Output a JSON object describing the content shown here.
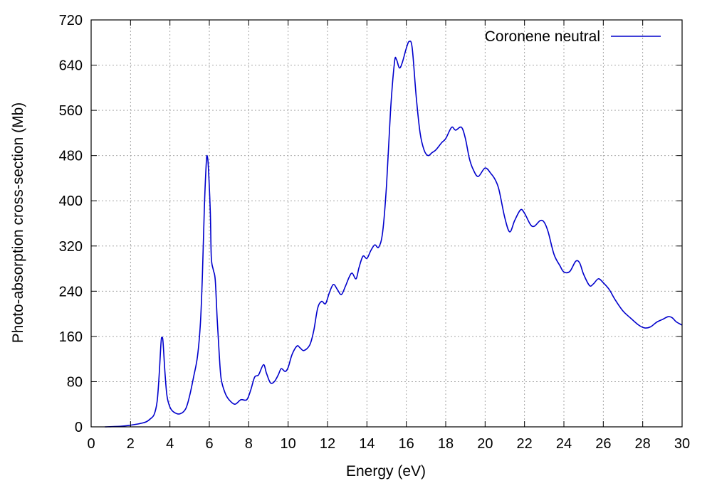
{
  "chart_data": {
    "type": "line",
    "xlabel": "Energy (eV)",
    "ylabel": "Photo-absorption cross-section (Mb)",
    "xlim": [
      0,
      30
    ],
    "ylim": [
      0,
      720
    ],
    "x_ticks": [
      0,
      2,
      4,
      6,
      8,
      10,
      12,
      14,
      16,
      18,
      20,
      22,
      24,
      26,
      28,
      30
    ],
    "y_ticks": [
      0,
      80,
      160,
      240,
      320,
      400,
      480,
      560,
      640,
      720
    ],
    "grid": true,
    "legend_position": "top-right",
    "series": [
      {
        "name": "Coronene neutral",
        "color": "#0000cc",
        "points": [
          [
            0.7,
            0
          ],
          [
            1.5,
            1
          ],
          [
            2.0,
            3
          ],
          [
            2.5,
            6
          ],
          [
            2.8,
            9
          ],
          [
            3.0,
            14
          ],
          [
            3.2,
            22
          ],
          [
            3.35,
            45
          ],
          [
            3.45,
            90
          ],
          [
            3.55,
            150
          ],
          [
            3.6,
            158
          ],
          [
            3.65,
            150
          ],
          [
            3.75,
            95
          ],
          [
            3.85,
            55
          ],
          [
            4.0,
            35
          ],
          [
            4.2,
            26
          ],
          [
            4.5,
            23
          ],
          [
            4.8,
            32
          ],
          [
            5.0,
            55
          ],
          [
            5.2,
            88
          ],
          [
            5.4,
            125
          ],
          [
            5.55,
            185
          ],
          [
            5.65,
            270
          ],
          [
            5.75,
            390
          ],
          [
            5.85,
            470
          ],
          [
            5.9,
            478
          ],
          [
            5.95,
            460
          ],
          [
            6.05,
            380
          ],
          [
            6.1,
            300
          ],
          [
            6.2,
            278
          ],
          [
            6.3,
            260
          ],
          [
            6.4,
            190
          ],
          [
            6.5,
            130
          ],
          [
            6.6,
            85
          ],
          [
            6.8,
            60
          ],
          [
            7.0,
            48
          ],
          [
            7.3,
            40
          ],
          [
            7.6,
            48
          ],
          [
            7.9,
            48
          ],
          [
            8.1,
            65
          ],
          [
            8.3,
            88
          ],
          [
            8.5,
            92
          ],
          [
            8.75,
            110
          ],
          [
            8.9,
            95
          ],
          [
            9.1,
            78
          ],
          [
            9.3,
            80
          ],
          [
            9.5,
            92
          ],
          [
            9.65,
            103
          ],
          [
            9.85,
            98
          ],
          [
            10.0,
            105
          ],
          [
            10.2,
            128
          ],
          [
            10.45,
            143
          ],
          [
            10.6,
            140
          ],
          [
            10.8,
            135
          ],
          [
            11.1,
            145
          ],
          [
            11.3,
            170
          ],
          [
            11.5,
            210
          ],
          [
            11.7,
            222
          ],
          [
            11.9,
            218
          ],
          [
            12.1,
            238
          ],
          [
            12.3,
            252
          ],
          [
            12.5,
            243
          ],
          [
            12.7,
            234
          ],
          [
            12.9,
            248
          ],
          [
            13.1,
            265
          ],
          [
            13.25,
            272
          ],
          [
            13.45,
            262
          ],
          [
            13.6,
            282
          ],
          [
            13.8,
            302
          ],
          [
            14.0,
            298
          ],
          [
            14.2,
            312
          ],
          [
            14.4,
            322
          ],
          [
            14.6,
            318
          ],
          [
            14.8,
            345
          ],
          [
            15.0,
            430
          ],
          [
            15.2,
            560
          ],
          [
            15.4,
            645
          ],
          [
            15.5,
            650
          ],
          [
            15.65,
            635
          ],
          [
            15.8,
            645
          ],
          [
            16.0,
            670
          ],
          [
            16.15,
            682
          ],
          [
            16.3,
            670
          ],
          [
            16.5,
            585
          ],
          [
            16.7,
            520
          ],
          [
            16.9,
            490
          ],
          [
            17.1,
            480
          ],
          [
            17.3,
            485
          ],
          [
            17.5,
            490
          ],
          [
            17.8,
            503
          ],
          [
            18.0,
            510
          ],
          [
            18.3,
            530
          ],
          [
            18.5,
            525
          ],
          [
            18.8,
            530
          ],
          [
            19.0,
            510
          ],
          [
            19.2,
            475
          ],
          [
            19.4,
            455
          ],
          [
            19.65,
            443
          ],
          [
            20.0,
            458
          ],
          [
            20.3,
            448
          ],
          [
            20.5,
            438
          ],
          [
            20.7,
            420
          ],
          [
            21.0,
            370
          ],
          [
            21.25,
            345
          ],
          [
            21.5,
            365
          ],
          [
            21.8,
            384
          ],
          [
            22.0,
            378
          ],
          [
            22.3,
            358
          ],
          [
            22.5,
            355
          ],
          [
            22.8,
            365
          ],
          [
            23.0,
            362
          ],
          [
            23.2,
            345
          ],
          [
            23.5,
            305
          ],
          [
            23.8,
            285
          ],
          [
            24.0,
            274
          ],
          [
            24.3,
            275
          ],
          [
            24.6,
            293
          ],
          [
            24.8,
            290
          ],
          [
            25.0,
            270
          ],
          [
            25.3,
            250
          ],
          [
            25.5,
            253
          ],
          [
            25.75,
            262
          ],
          [
            26.0,
            255
          ],
          [
            26.3,
            243
          ],
          [
            26.6,
            225
          ],
          [
            27.0,
            205
          ],
          [
            27.4,
            192
          ],
          [
            27.8,
            180
          ],
          [
            28.1,
            175
          ],
          [
            28.4,
            177
          ],
          [
            28.7,
            185
          ],
          [
            29.0,
            190
          ],
          [
            29.3,
            195
          ],
          [
            29.5,
            193
          ],
          [
            29.7,
            186
          ],
          [
            30.0,
            180
          ]
        ]
      }
    ]
  }
}
